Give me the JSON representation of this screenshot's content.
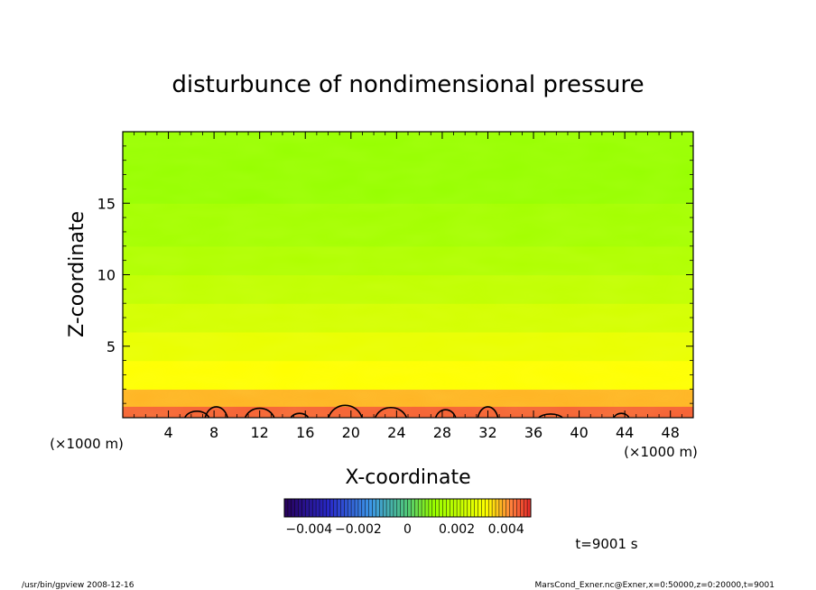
{
  "chart_data": {
    "type": "heatmap",
    "title": "disturbunce of nondimensional pressure",
    "xlabel": "X-coordinate",
    "ylabel": "Z-coordinate",
    "x_unit_left": "(×1000 m)",
    "x_unit_right": "(×1000 m)",
    "xlim": [
      0,
      50
    ],
    "ylim": [
      0,
      20
    ],
    "xticks": [
      4,
      8,
      12,
      16,
      20,
      24,
      28,
      32,
      36,
      40,
      44,
      48
    ],
    "xtick_labels": [
      "4",
      "8",
      "12",
      "16",
      "20",
      "24",
      "28",
      "32",
      "36",
      "40",
      "44",
      "48"
    ],
    "yticks": [
      5,
      10,
      15
    ],
    "ytick_labels": [
      "5",
      "10",
      "15"
    ],
    "colorbar": {
      "range": [
        -0.005,
        0.005
      ],
      "tick_labels": [
        "−0.004",
        "−0.002",
        "0",
        "0.002",
        "0.004"
      ],
      "tick_values": [
        -0.004,
        -0.002,
        0,
        0.002,
        0.004
      ]
    },
    "field_levels": [
      {
        "z_from": 0,
        "z_to": 0.8,
        "value": 0.0045
      },
      {
        "z_from": 0.8,
        "z_to": 2,
        "value": 0.0038
      },
      {
        "z_from": 2,
        "z_to": 4,
        "value": 0.0032
      },
      {
        "z_from": 4,
        "z_to": 6,
        "value": 0.0028
      },
      {
        "z_from": 6,
        "z_to": 8,
        "value": 0.0024
      },
      {
        "z_from": 8,
        "z_to": 10,
        "value": 0.002
      },
      {
        "z_from": 10,
        "z_to": 12,
        "value": 0.0016
      },
      {
        "z_from": 12,
        "z_to": 15,
        "value": 0.0013
      },
      {
        "z_from": 15,
        "z_to": 20,
        "value": 0.001
      }
    ],
    "contour_bumps": [
      {
        "x_center": 6.5,
        "width": 2.2,
        "peak_z": 0.45
      },
      {
        "x_center": 8.2,
        "width": 2.0,
        "peak_z": 0.75
      },
      {
        "x_center": 12.0,
        "width": 2.6,
        "peak_z": 0.65
      },
      {
        "x_center": 15.5,
        "width": 1.6,
        "peak_z": 0.3
      },
      {
        "x_center": 19.5,
        "width": 3.0,
        "peak_z": 0.85
      },
      {
        "x_center": 23.5,
        "width": 2.8,
        "peak_z": 0.7
      },
      {
        "x_center": 28.3,
        "width": 1.8,
        "peak_z": 0.55
      },
      {
        "x_center": 32.0,
        "width": 1.8,
        "peak_z": 0.75
      },
      {
        "x_center": 37.5,
        "width": 2.2,
        "peak_z": 0.25
      },
      {
        "x_center": 43.7,
        "width": 1.4,
        "peak_z": 0.3
      }
    ]
  },
  "annotation_time": "t=9001 s",
  "footer_left": "/usr/bin/gpview   2008-12-16",
  "footer_right": "MarsCond_Exner.nc@Exner,x=0:50000,z=0:20000,t=9001"
}
